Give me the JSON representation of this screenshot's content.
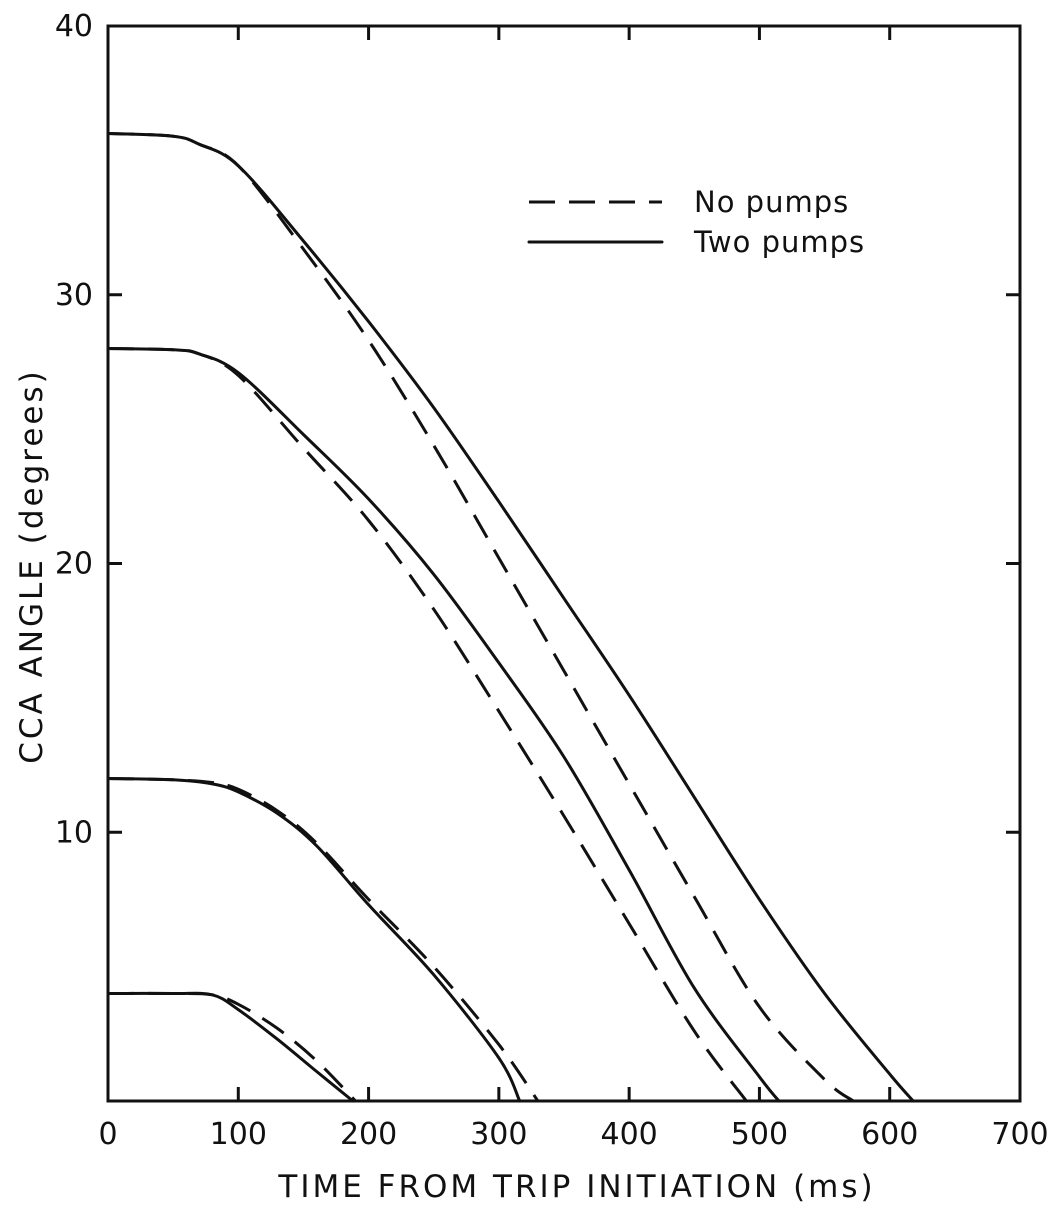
{
  "chart_data": {
    "type": "line",
    "xlabel": "TIME  FROM TRIP INITIATION (ms)",
    "ylabel": "CCA ANGLE (degrees)",
    "xlim": [
      0,
      700
    ],
    "ylim": [
      0,
      40
    ],
    "xticks": [
      "0",
      "100",
      "200",
      "300",
      "400",
      "500",
      "600",
      "700"
    ],
    "yticks": [
      "40",
      "30",
      "20",
      "10"
    ],
    "grid": false,
    "legend_position": "top-right",
    "legend": [
      {
        "label": "No pumps",
        "style": "dashed"
      },
      {
        "label": "Two pumps",
        "style": "solid"
      }
    ],
    "series": [
      {
        "style": "solid",
        "x": [
          0,
          50,
          70,
          100,
          150,
          200,
          250,
          300,
          350,
          400,
          450,
          500,
          550,
          600,
          618
        ],
        "y": [
          36,
          35.9,
          35.6,
          34.8,
          32,
          29,
          25.8,
          22.3,
          18.7,
          15.1,
          11.3,
          7.5,
          4,
          1,
          0
        ]
      },
      {
        "style": "dashed",
        "x": [
          0,
          50,
          70,
          100,
          150,
          200,
          250,
          300,
          350,
          400,
          450,
          500,
          550,
          572
        ],
        "y": [
          36,
          35.9,
          35.6,
          34.8,
          31.7,
          28.3,
          24.4,
          20.2,
          16,
          11.8,
          7.6,
          3.5,
          0.8,
          0
        ]
      },
      {
        "style": "solid",
        "x": [
          0,
          50,
          70,
          100,
          150,
          200,
          250,
          300,
          350,
          400,
          450,
          500,
          515
        ],
        "y": [
          28,
          27.95,
          27.8,
          27.1,
          24.8,
          22.4,
          19.6,
          16.3,
          12.8,
          8.6,
          4.2,
          0.9,
          0
        ]
      },
      {
        "style": "dashed",
        "x": [
          0,
          50,
          70,
          100,
          150,
          200,
          250,
          300,
          350,
          400,
          450,
          490
        ],
        "y": [
          28,
          27.95,
          27.8,
          27,
          24.3,
          21.6,
          18.3,
          14.5,
          10.6,
          6.6,
          2.6,
          0
        ]
      },
      {
        "style": "solid",
        "x": [
          0,
          50,
          80,
          100,
          130,
          160,
          200,
          250,
          300,
          316
        ],
        "y": [
          12,
          11.95,
          11.8,
          11.5,
          10.7,
          9.5,
          7.3,
          4.7,
          1.6,
          0
        ]
      },
      {
        "style": "dashed",
        "x": [
          0,
          50,
          80,
          100,
          130,
          160,
          200,
          250,
          300,
          330
        ],
        "y": [
          12,
          11.95,
          11.85,
          11.6,
          10.8,
          9.6,
          7.5,
          5,
          2.1,
          0
        ]
      },
      {
        "style": "solid",
        "x": [
          0,
          50,
          80,
          100,
          130,
          160,
          188
        ],
        "y": [
          4,
          4,
          3.95,
          3.4,
          2.3,
          1.1,
          0
        ]
      },
      {
        "style": "dashed",
        "x": [
          0,
          50,
          80,
          100,
          130,
          160,
          190
        ],
        "y": [
          4,
          4,
          3.95,
          3.6,
          2.7,
          1.5,
          0
        ]
      }
    ]
  }
}
